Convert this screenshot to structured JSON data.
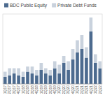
{
  "chart_data": {
    "type": "bar",
    "stacked": true,
    "tick_labels": "x",
    "legend": "top",
    "categories": [
      "1Q17",
      "2Q17",
      "3Q17",
      "4Q17",
      "1Q18",
      "2Q18",
      "3Q18",
      "4Q18",
      "1Q19",
      "2Q19",
      "3Q19",
      "4Q19",
      "1Q20",
      "2Q20",
      "3Q20",
      "4Q20",
      "1Q21",
      "2Q21",
      "3Q21",
      "4Q21",
      "1Q22",
      "2Q22"
    ],
    "series": [
      {
        "name": "BDC Public Equity",
        "color": "#4d6b8f",
        "values": [
          4,
          5,
          6,
          5,
          4,
          7,
          6,
          5,
          8,
          6,
          5,
          9,
          6,
          12,
          8,
          14,
          18,
          20,
          15,
          30,
          12,
          9
        ]
      },
      {
        "name": "Private Debt Funds",
        "color": "#c9d2dd",
        "values": [
          3,
          4,
          3,
          4,
          3,
          3,
          4,
          3,
          4,
          3,
          3,
          4,
          5,
          4,
          5,
          6,
          7,
          8,
          6,
          8,
          5,
          4
        ]
      }
    ],
    "ylim": [
      0,
      40
    ]
  }
}
